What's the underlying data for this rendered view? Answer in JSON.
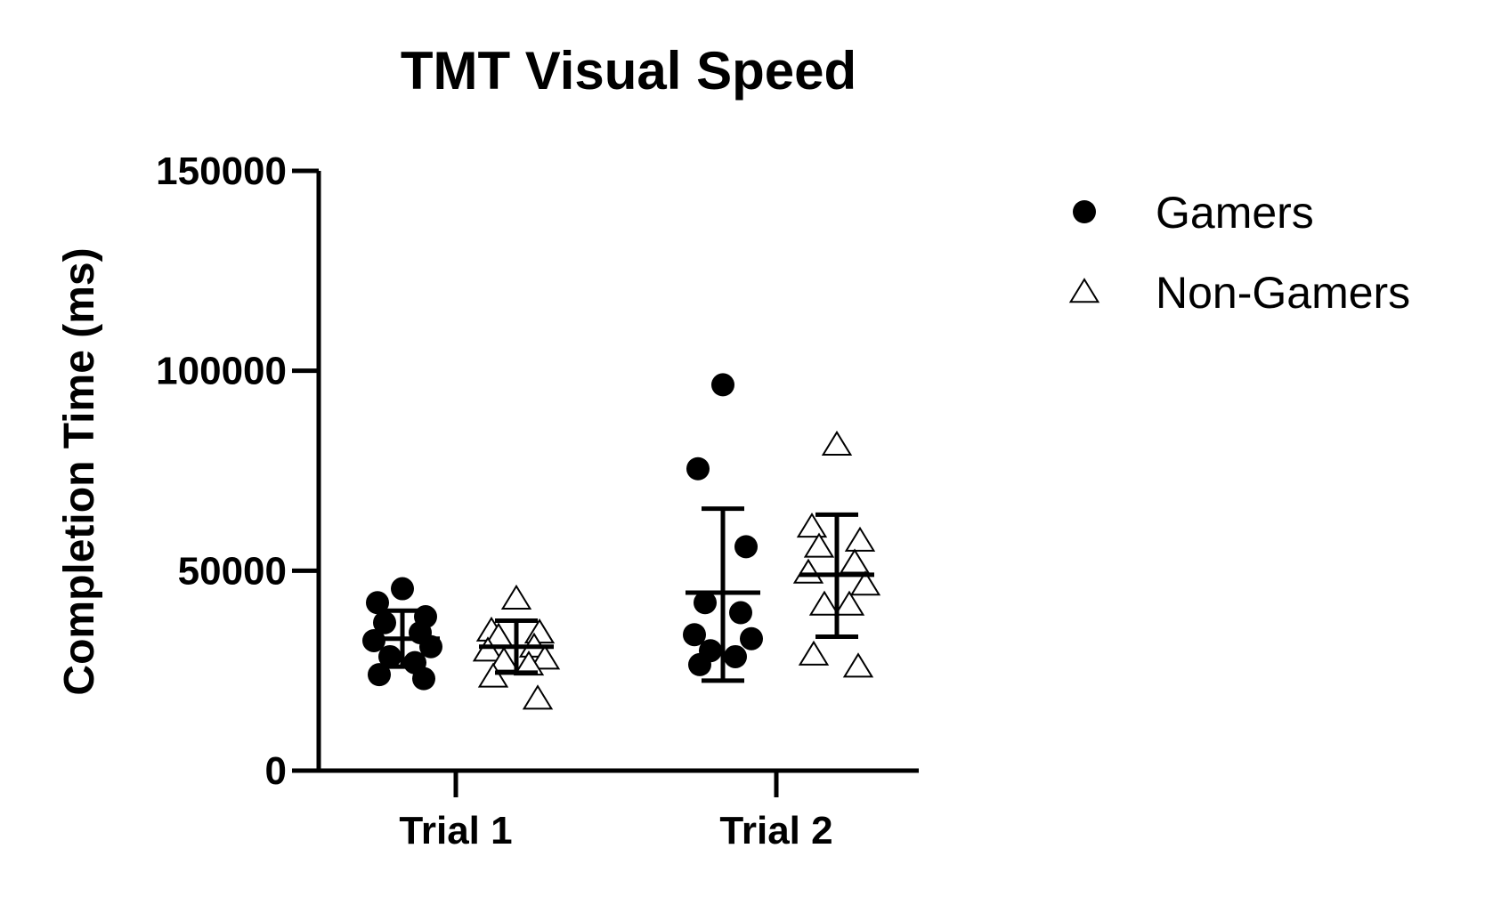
{
  "chart_data": {
    "type": "scatter",
    "title": "TMT Visual Speed",
    "ylabel": "Completion Time (ms)",
    "xlabel": "",
    "categories": [
      "Trial 1",
      "Trial 2"
    ],
    "ylim": [
      0,
      150000
    ],
    "yticks": [
      0,
      50000,
      100000,
      150000
    ],
    "ytick_labels": [
      "0",
      "50000",
      "100000",
      "150000"
    ],
    "grid": false,
    "legend_position": "top-right",
    "series": [
      {
        "name": "Gamers",
        "marker": "filled-circle",
        "color": "#000000",
        "points": [
          {
            "category": "Trial 1",
            "values": [
              45500,
              42000,
              38500,
              37000,
              34500,
              32500,
              31000,
              28500,
              27000,
              24000,
              23000
            ]
          },
          {
            "category": "Trial 2",
            "values": [
              96500,
              75500,
              56000,
              42000,
              39500,
              34000,
              33000,
              30000,
              28500,
              26500
            ]
          }
        ],
        "summary": [
          {
            "category": "Trial 1",
            "mean": 33000,
            "sd_upper": 40000,
            "sd_lower": 26000
          },
          {
            "category": "Trial 2",
            "mean": 44500,
            "sd_upper": 65500,
            "sd_lower": 22500
          }
        ]
      },
      {
        "name": "Non-Gamers",
        "marker": "open-triangle",
        "color": "#000000",
        "points": [
          {
            "category": "Trial 1",
            "values": [
              43000,
              35000,
              34500,
              33500,
              31000,
              30000,
              28000,
              27500,
              26500,
              23500,
              18000
            ]
          },
          {
            "category": "Trial 2",
            "values": [
              81500,
              61000,
              57500,
              56000,
              52000,
              49500,
              46500,
              41500,
              41500,
              29000,
              26000
            ]
          }
        ],
        "summary": [
          {
            "category": "Trial 1",
            "mean": 31000,
            "sd_upper": 37500,
            "sd_lower": 24500
          },
          {
            "category": "Trial 2",
            "mean": 49000,
            "sd_upper": 64000,
            "sd_lower": 33500
          }
        ]
      }
    ]
  }
}
